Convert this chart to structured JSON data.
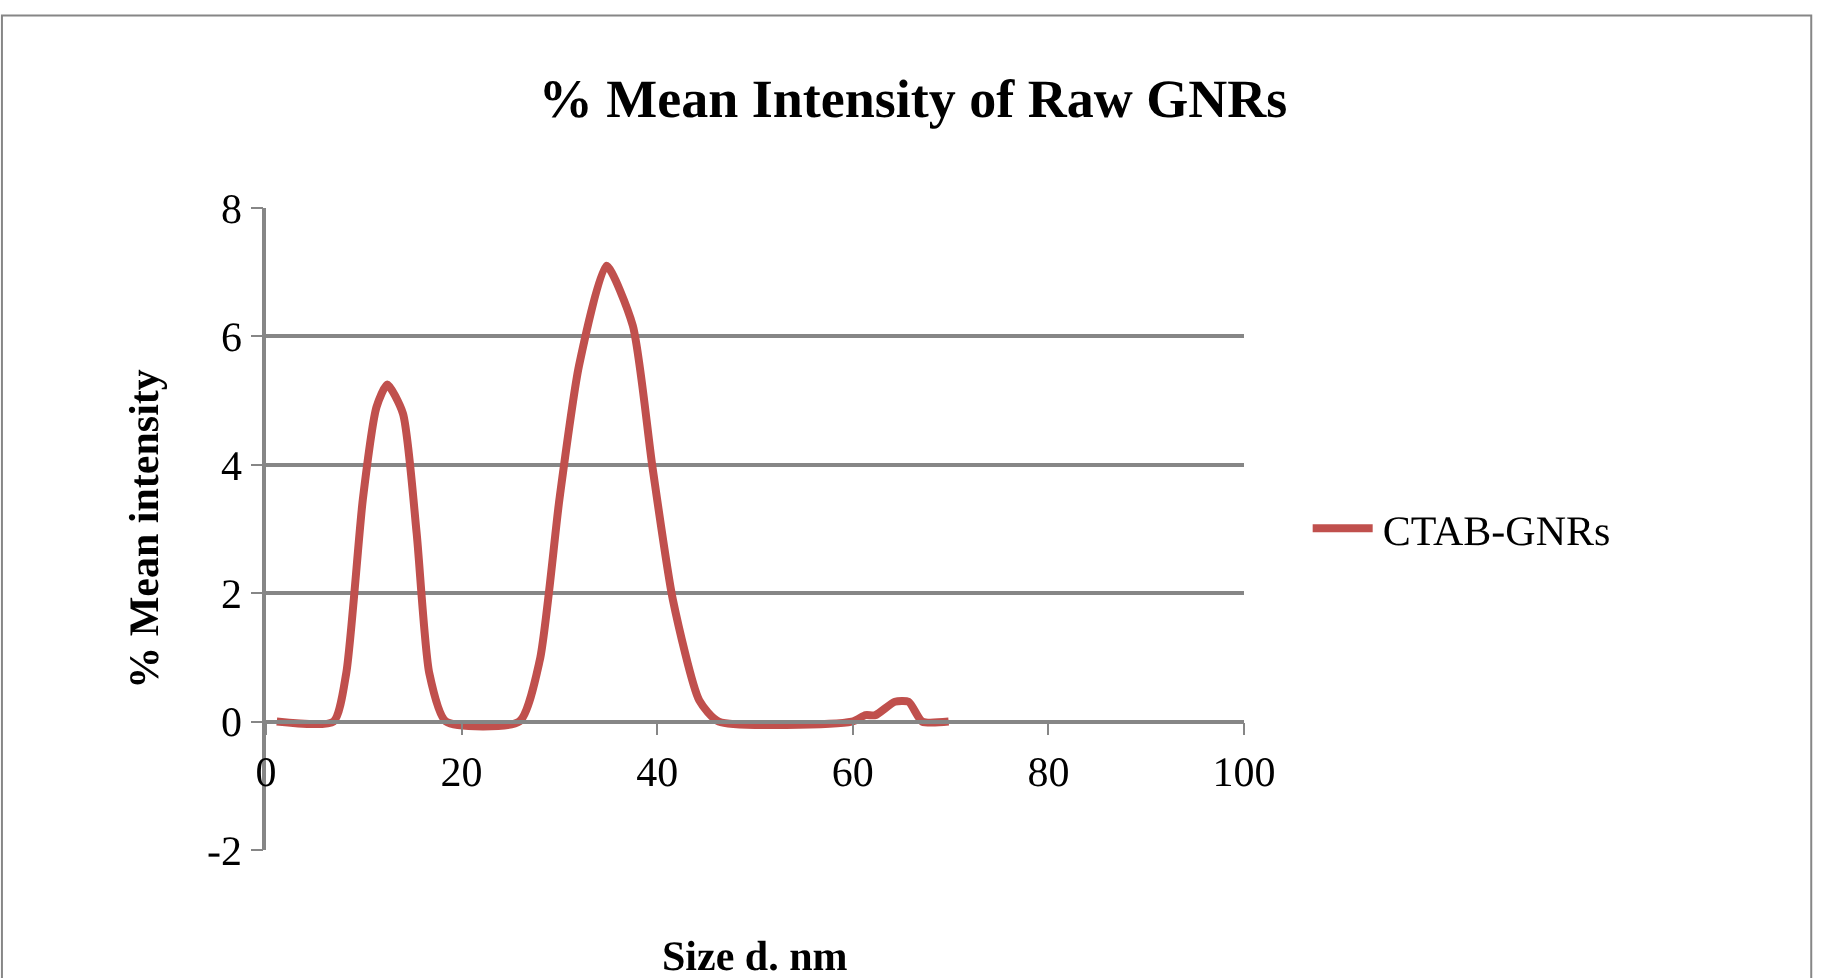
{
  "chart_data": {
    "type": "line",
    "title": "% Mean Intensity of Raw GNRs",
    "xlabel": "Size d. nm",
    "ylabel": "% Mean intensity",
    "xlim": [
      0,
      100
    ],
    "xticks": [
      0,
      20,
      40,
      60,
      80,
      100
    ],
    "ylim": [
      -2,
      8
    ],
    "yticks": [
      -2,
      0,
      2,
      4,
      6,
      8
    ],
    "grid": "y",
    "legend": "right",
    "marker": "none",
    "line_style": "solid",
    "series": [
      {
        "name": "CTAB-GNRs",
        "color": "#c0504d",
        "x": [
          1.1,
          6.9,
          8.2,
          9.9,
          11.3,
          12.4,
          14.0,
          15.4,
          16.7,
          18.4,
          25.9,
          28.0,
          30.0,
          32.0,
          34.8,
          37.5,
          39.5,
          41.6,
          44.3,
          46.3,
          59.9,
          61.3,
          62.3,
          64.3,
          65.7,
          67.1,
          69.8
        ],
        "values": [
          0,
          0,
          0.75,
          3.46,
          4.9,
          5.25,
          4.8,
          2.94,
          0.75,
          0,
          0,
          0.96,
          3.46,
          5.54,
          7.1,
          6.17,
          3.98,
          1.9,
          0.33,
          0,
          0,
          0.1,
          0.1,
          0.31,
          0.31,
          0,
          0
        ]
      }
    ]
  }
}
